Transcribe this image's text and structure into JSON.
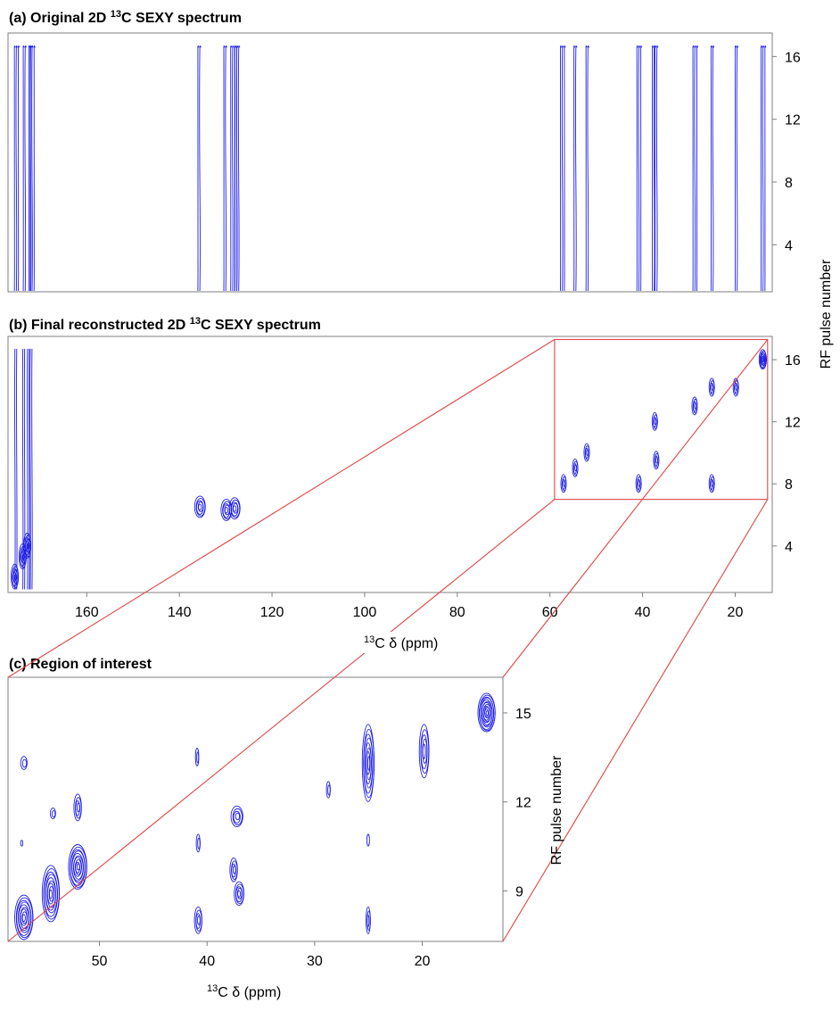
{
  "panels": {
    "a": {
      "title_pre": "(a) Original 2D ",
      "title_sup": "13",
      "title_post": "C SEXY spectrum"
    },
    "b": {
      "title_pre": "(b) Final reconstructed 2D ",
      "title_sup": "13",
      "title_post": "C SEXY spectrum"
    },
    "c": {
      "title": "(c) Region of interest"
    }
  },
  "axes": {
    "ylabel": "RF pulse number",
    "xlabel_sup": "13",
    "xlabel_rest": "C δ (ppm)"
  },
  "accent_color": "#1f1fe6",
  "roi_color": "#e04545",
  "chart_data": [
    {
      "type": "heatmap",
      "panel": "a",
      "xlim": [
        177,
        12
      ],
      "ylim": [
        1,
        17.5
      ],
      "yticks": [
        "4",
        "8",
        "12",
        "16"
      ],
      "xticks": [],
      "columns_ppm": [
        175.2,
        173.5,
        172.3,
        171.8,
        135.8,
        130.2,
        128.5,
        127.8,
        127.4,
        57.3,
        54.6,
        52.0,
        40.8,
        37.7,
        37.1,
        28.7,
        25.0,
        19.8,
        14.0
      ]
    },
    {
      "type": "heatmap",
      "panel": "b",
      "xlim": [
        177,
        12
      ],
      "ylim": [
        1,
        17.5
      ],
      "yticks": [
        "4",
        "8",
        "12",
        "16"
      ],
      "xticks": [
        "160",
        "140",
        "120",
        "100",
        "80",
        "60",
        "40",
        "20"
      ],
      "region_of_interest": {
        "x": [
          59,
          13
        ],
        "y": [
          7,
          17.3
        ]
      },
      "peaks": [
        {
          "ppm": 175.5,
          "pulse": 2.0
        },
        {
          "ppm": 173.8,
          "pulse": 3.3
        },
        {
          "ppm": 172.8,
          "pulse": 4.0
        },
        {
          "ppm": 135.5,
          "pulse": 6.5
        },
        {
          "ppm": 129.8,
          "pulse": 6.3
        },
        {
          "ppm": 128.0,
          "pulse": 6.4
        },
        {
          "ppm": 57.0,
          "pulse": 8.0
        },
        {
          "ppm": 54.5,
          "pulse": 9.0
        },
        {
          "ppm": 52.0,
          "pulse": 10.0
        },
        {
          "ppm": 40.8,
          "pulse": 8.0
        },
        {
          "ppm": 37.0,
          "pulse": 9.5
        },
        {
          "ppm": 37.3,
          "pulse": 12.0
        },
        {
          "ppm": 28.7,
          "pulse": 13.0
        },
        {
          "ppm": 25.0,
          "pulse": 14.2
        },
        {
          "ppm": 25.0,
          "pulse": 8.0
        },
        {
          "ppm": 19.8,
          "pulse": 14.2
        },
        {
          "ppm": 14.0,
          "pulse": 16.0
        }
      ]
    },
    {
      "type": "heatmap",
      "panel": "c",
      "xlim": [
        58.5,
        12.5
      ],
      "ylim": [
        7.3,
        16.2
      ],
      "yticks": [
        "9",
        "12",
        "15"
      ],
      "xticks": [
        "50",
        "40",
        "30",
        "20"
      ],
      "peaks": [
        {
          "ppm": 57.0,
          "pulse": 8.1,
          "rx": 0.85,
          "ry": 0.75,
          "n": 9
        },
        {
          "ppm": 57.0,
          "pulse": 13.3,
          "rx": 0.3,
          "ry": 0.22,
          "n": 2
        },
        {
          "ppm": 57.2,
          "pulse": 10.6,
          "rx": 0.1,
          "ry": 0.1,
          "n": 1
        },
        {
          "ppm": 54.5,
          "pulse": 8.9,
          "rx": 0.8,
          "ry": 0.95,
          "n": 9
        },
        {
          "ppm": 54.3,
          "pulse": 11.6,
          "rx": 0.25,
          "ry": 0.18,
          "n": 2
        },
        {
          "ppm": 52.0,
          "pulse": 9.8,
          "rx": 0.85,
          "ry": 0.75,
          "n": 10
        },
        {
          "ppm": 52.0,
          "pulse": 11.8,
          "rx": 0.35,
          "ry": 0.45,
          "n": 4
        },
        {
          "ppm": 40.8,
          "pulse": 8.0,
          "rx": 0.35,
          "ry": 0.45,
          "n": 4
        },
        {
          "ppm": 40.8,
          "pulse": 10.6,
          "rx": 0.18,
          "ry": 0.3,
          "n": 2
        },
        {
          "ppm": 40.9,
          "pulse": 13.5,
          "rx": 0.15,
          "ry": 0.3,
          "n": 2
        },
        {
          "ppm": 37.5,
          "pulse": 9.7,
          "rx": 0.35,
          "ry": 0.4,
          "n": 4
        },
        {
          "ppm": 37.0,
          "pulse": 8.9,
          "rx": 0.45,
          "ry": 0.4,
          "n": 5
        },
        {
          "ppm": 37.2,
          "pulse": 11.5,
          "rx": 0.55,
          "ry": 0.35,
          "n": 4
        },
        {
          "ppm": 28.7,
          "pulse": 12.4,
          "rx": 0.18,
          "ry": 0.28,
          "n": 2
        },
        {
          "ppm": 25.0,
          "pulse": 13.3,
          "rx": 0.55,
          "ry": 1.3,
          "n": 8
        },
        {
          "ppm": 25.0,
          "pulse": 8.0,
          "rx": 0.2,
          "ry": 0.45,
          "n": 3
        },
        {
          "ppm": 25.0,
          "pulse": 10.7,
          "rx": 0.12,
          "ry": 0.2,
          "n": 1
        },
        {
          "ppm": 19.8,
          "pulse": 13.7,
          "rx": 0.45,
          "ry": 0.9,
          "n": 5
        },
        {
          "ppm": 14.0,
          "pulse": 15.0,
          "rx": 0.8,
          "ry": 0.65,
          "n": 12
        }
      ]
    }
  ]
}
